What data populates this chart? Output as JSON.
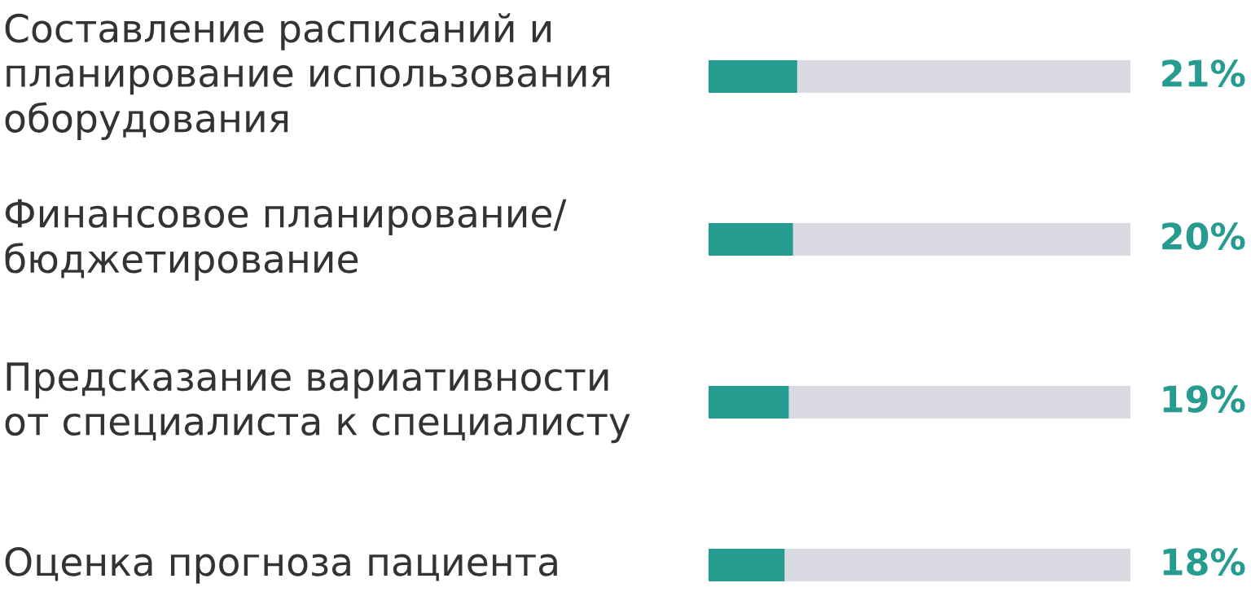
{
  "chart_data": {
    "type": "bar",
    "orientation": "horizontal",
    "categories": [
      "Составление расписаний и\nпланирование использования\nоборудования",
      "Финансовое планирование/\nбюджетирование",
      "Предсказание вариативности\nот специалиста к специалисту",
      "Оценка прогноза пациента"
    ],
    "values": [
      21,
      20,
      19,
      18
    ],
    "color": "#269b8f",
    "value_labels": [
      "21%",
      "20%",
      "19%",
      "18%"
    ],
    "xlim": [
      0,
      100
    ],
    "bands": [
      {
        "axis": "x",
        "from": 0,
        "to": 100,
        "color": "#dadae3"
      }
    ]
  }
}
